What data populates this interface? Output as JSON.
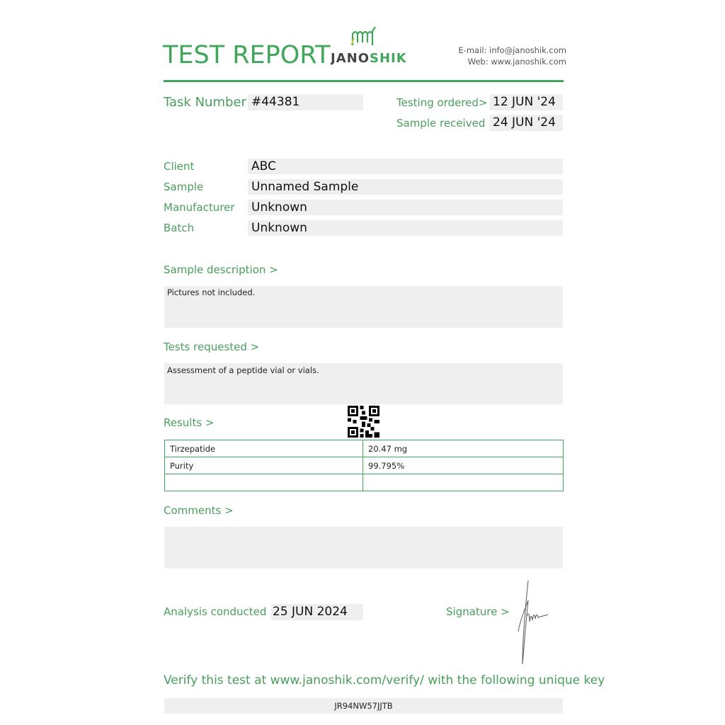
{
  "header": {
    "title": "TEST REPORT",
    "logo_text": "JANOSHIK",
    "email": "E-mail: info@janoshik.com",
    "web": "Web: www.janoshik.com"
  },
  "task": {
    "label": "Task Number",
    "value": "#44381"
  },
  "dates": {
    "ordered_label": "Testing ordered",
    "ordered_arrow": ">",
    "ordered_value": "12 JUN '24",
    "received_label": "Sample received >",
    "received_value": "24 JUN '24"
  },
  "fields": [
    {
      "label": "Client",
      "value": "ABC"
    },
    {
      "label": "Sample",
      "value": "Unnamed Sample"
    },
    {
      "label": "Manufacturer",
      "value": "Unknown"
    },
    {
      "label": "Batch",
      "value": "Unknown"
    }
  ],
  "sample_description": {
    "label": "Sample description >",
    "text": "Pictures not included."
  },
  "tests_requested": {
    "label": "Tests requested >",
    "text": "Assessment of a peptide vial or vials."
  },
  "results": {
    "label": "Results >",
    "rows": [
      [
        "Tirzepatide",
        "20.47 mg"
      ],
      [
        "Purity",
        "99.795%"
      ],
      [
        "",
        ""
      ]
    ]
  },
  "comments": {
    "label": "Comments >",
    "text": ""
  },
  "analysis": {
    "label": "Analysis conducted >",
    "value": "25 JUN 2024"
  },
  "signature": {
    "label": "Signature >"
  },
  "verify": {
    "text": "Verify this test at www.janoshik.com/verify/ with the following unique key",
    "key": "JR94NW57JJTB"
  },
  "colors": {
    "accent": "#3fa65a",
    "label": "#4a9e5c",
    "field_bg": "#efefef"
  }
}
